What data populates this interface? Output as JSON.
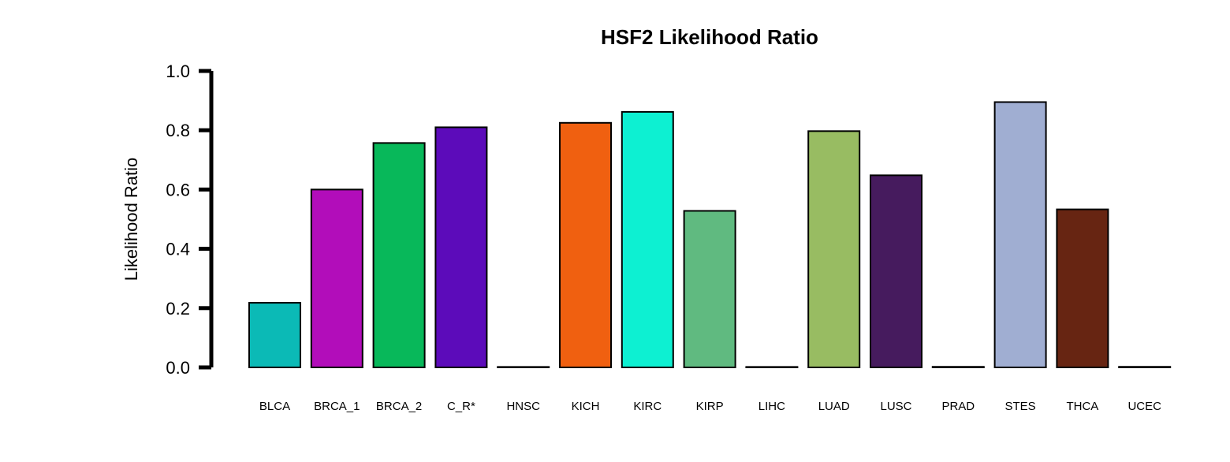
{
  "chart_data": {
    "type": "bar",
    "title": "HSF2 Likelihood Ratio",
    "xlabel": "",
    "ylabel": "Likelihood Ratio",
    "ylim": [
      0,
      1.0
    ],
    "yticks": [
      "0.0",
      "0.2",
      "0.4",
      "0.6",
      "0.8",
      "1.0"
    ],
    "categories": [
      "BLCA",
      "BRCA_1",
      "BRCA_2",
      "C_R*",
      "HNSC",
      "KICH",
      "KIRC",
      "KIRP",
      "LIHC",
      "LUAD",
      "LUSC",
      "PRAD",
      "STES",
      "THCA",
      "UCEC"
    ],
    "values": [
      0.218,
      0.6,
      0.757,
      0.81,
      0.0,
      0.825,
      0.862,
      0.528,
      0.0,
      0.797,
      0.648,
      0.002,
      0.895,
      0.533,
      0.002
    ],
    "colors": [
      "#0BBAB6",
      "#B20DBA",
      "#08B85A",
      "#5C0BBA",
      "#000000",
      "#F06010",
      "#0DF0D2",
      "#60BA80",
      "#000000",
      "#98BC62",
      "#461B5E",
      "#000000",
      "#A0AED2",
      "#672512",
      "#000000"
    ],
    "grid": false,
    "legend": "none"
  }
}
